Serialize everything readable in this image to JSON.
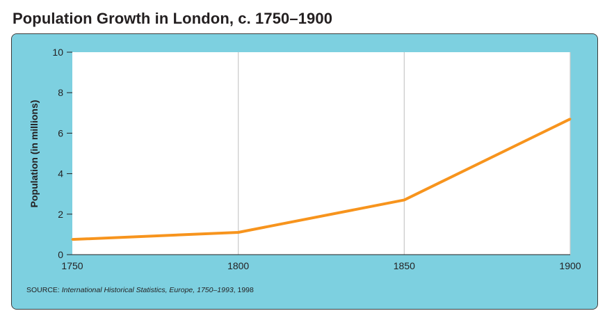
{
  "colors": {
    "panel_bg": "#7dd0e0",
    "plot_bg": "#ffffff",
    "gridline": "#c8c8c8",
    "line": "#f7941d",
    "text": "#231f20"
  },
  "source": {
    "prefix": "SOURCE: ",
    "work": "International Historical Statistics, Europe, 1750–1993",
    "suffix": ", 1998"
  },
  "chart_data": {
    "type": "line",
    "title": "Population Growth in London, c. 1750–1900",
    "xlabel": "",
    "ylabel": "Population (in millions)",
    "x": [
      1750,
      1800,
      1850,
      1900
    ],
    "series": [
      {
        "values": [
          0.75,
          1.1,
          2.7,
          6.7
        ]
      }
    ],
    "xlim": [
      1750,
      1900
    ],
    "ylim": [
      0,
      10
    ],
    "xticks": [
      "1750",
      "1800",
      "1850",
      "1900"
    ],
    "yticks": [
      "0",
      "2",
      "4",
      "6",
      "8",
      "10"
    ],
    "grid": "vertical"
  }
}
